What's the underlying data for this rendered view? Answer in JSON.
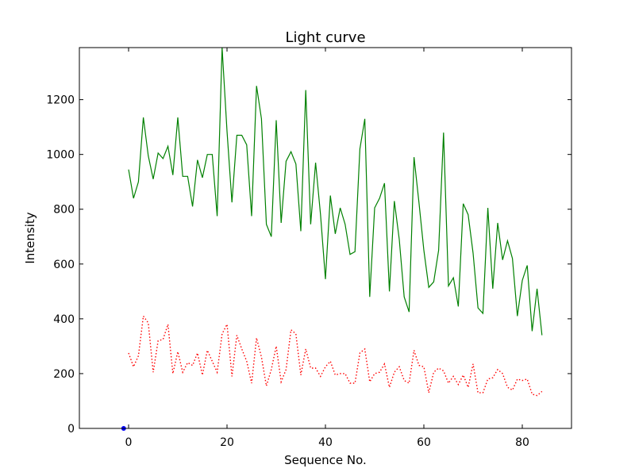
{
  "chart_data": {
    "type": "line",
    "title": "Light curve",
    "xlabel": "Sequence No.",
    "ylabel": "Intensity",
    "xlim": [
      -10,
      90
    ],
    "ylim": [
      0,
      1390
    ],
    "xticks": [
      0,
      20,
      40,
      60,
      80
    ],
    "yticks": [
      0,
      200,
      400,
      600,
      800,
      1000,
      1200
    ],
    "grid": false,
    "legend": "none",
    "series": [
      {
        "color": "#008000",
        "style": "solid",
        "x": [
          0,
          1,
          2,
          3,
          4,
          5,
          6,
          7,
          8,
          9,
          10,
          11,
          12,
          13,
          14,
          15,
          16,
          17,
          18,
          19,
          20,
          21,
          22,
          23,
          24,
          25,
          26,
          27,
          28,
          29,
          30,
          31,
          32,
          33,
          34,
          35,
          36,
          37,
          38,
          39,
          40,
          41,
          42,
          43,
          44,
          45,
          46,
          47,
          48,
          49,
          50,
          51,
          52,
          53,
          54,
          55,
          56,
          57,
          58,
          59,
          60,
          61,
          62,
          63,
          64,
          65,
          66,
          67,
          68,
          69,
          70,
          71,
          72,
          73,
          74,
          75,
          76,
          77,
          78,
          79,
          80,
          81,
          82,
          83,
          84
        ],
        "values": [
          945,
          840,
          900,
          1135,
          995,
          910,
          1005,
          985,
          1030,
          925,
          1135,
          920,
          920,
          810,
          980,
          915,
          1000,
          1000,
          775,
          1390,
          1085,
          825,
          1070,
          1070,
          1035,
          775,
          1250,
          1130,
          745,
          700,
          1125,
          750,
          975,
          1010,
          965,
          720,
          1235,
          745,
          970,
          780,
          545,
          850,
          710,
          805,
          745,
          635,
          645,
          1020,
          1130,
          480,
          805,
          840,
          895,
          500,
          830,
          690,
          480,
          425,
          990,
          825,
          650,
          515,
          535,
          650,
          1080,
          520,
          550,
          445,
          820,
          780,
          640,
          440,
          420,
          805,
          510,
          750,
          615,
          685,
          620,
          410,
          540,
          595,
          355,
          510,
          340
        ]
      },
      {
        "color": "#ff0000",
        "style": "dotted",
        "x": [
          0,
          1,
          2,
          3,
          4,
          5,
          6,
          7,
          8,
          9,
          10,
          11,
          12,
          13,
          14,
          15,
          16,
          17,
          18,
          19,
          20,
          21,
          22,
          23,
          24,
          25,
          26,
          27,
          28,
          29,
          30,
          31,
          32,
          33,
          34,
          35,
          36,
          37,
          38,
          39,
          40,
          41,
          42,
          43,
          44,
          45,
          46,
          47,
          48,
          49,
          50,
          51,
          52,
          53,
          54,
          55,
          56,
          57,
          58,
          59,
          60,
          61,
          62,
          63,
          64,
          65,
          66,
          67,
          68,
          69,
          70,
          71,
          72,
          73,
          74,
          75,
          76,
          77,
          78,
          79,
          80,
          81,
          82,
          83,
          84
        ],
        "values": [
          275,
          225,
          265,
          410,
          385,
          205,
          320,
          325,
          380,
          200,
          280,
          205,
          240,
          230,
          275,
          195,
          285,
          245,
          205,
          345,
          380,
          190,
          340,
          290,
          245,
          165,
          330,
          260,
          155,
          215,
          300,
          170,
          215,
          360,
          345,
          195,
          290,
          220,
          220,
          190,
          225,
          245,
          195,
          200,
          200,
          165,
          165,
          275,
          290,
          170,
          200,
          205,
          235,
          150,
          205,
          225,
          175,
          165,
          285,
          230,
          225,
          130,
          205,
          220,
          210,
          165,
          190,
          160,
          195,
          150,
          235,
          130,
          130,
          180,
          185,
          215,
          200,
          150,
          140,
          180,
          175,
          180,
          125,
          120,
          135
        ]
      },
      {
        "color": "#0000ff",
        "style": "solid",
        "x": [
          -1
        ],
        "values": [
          0
        ]
      }
    ]
  }
}
